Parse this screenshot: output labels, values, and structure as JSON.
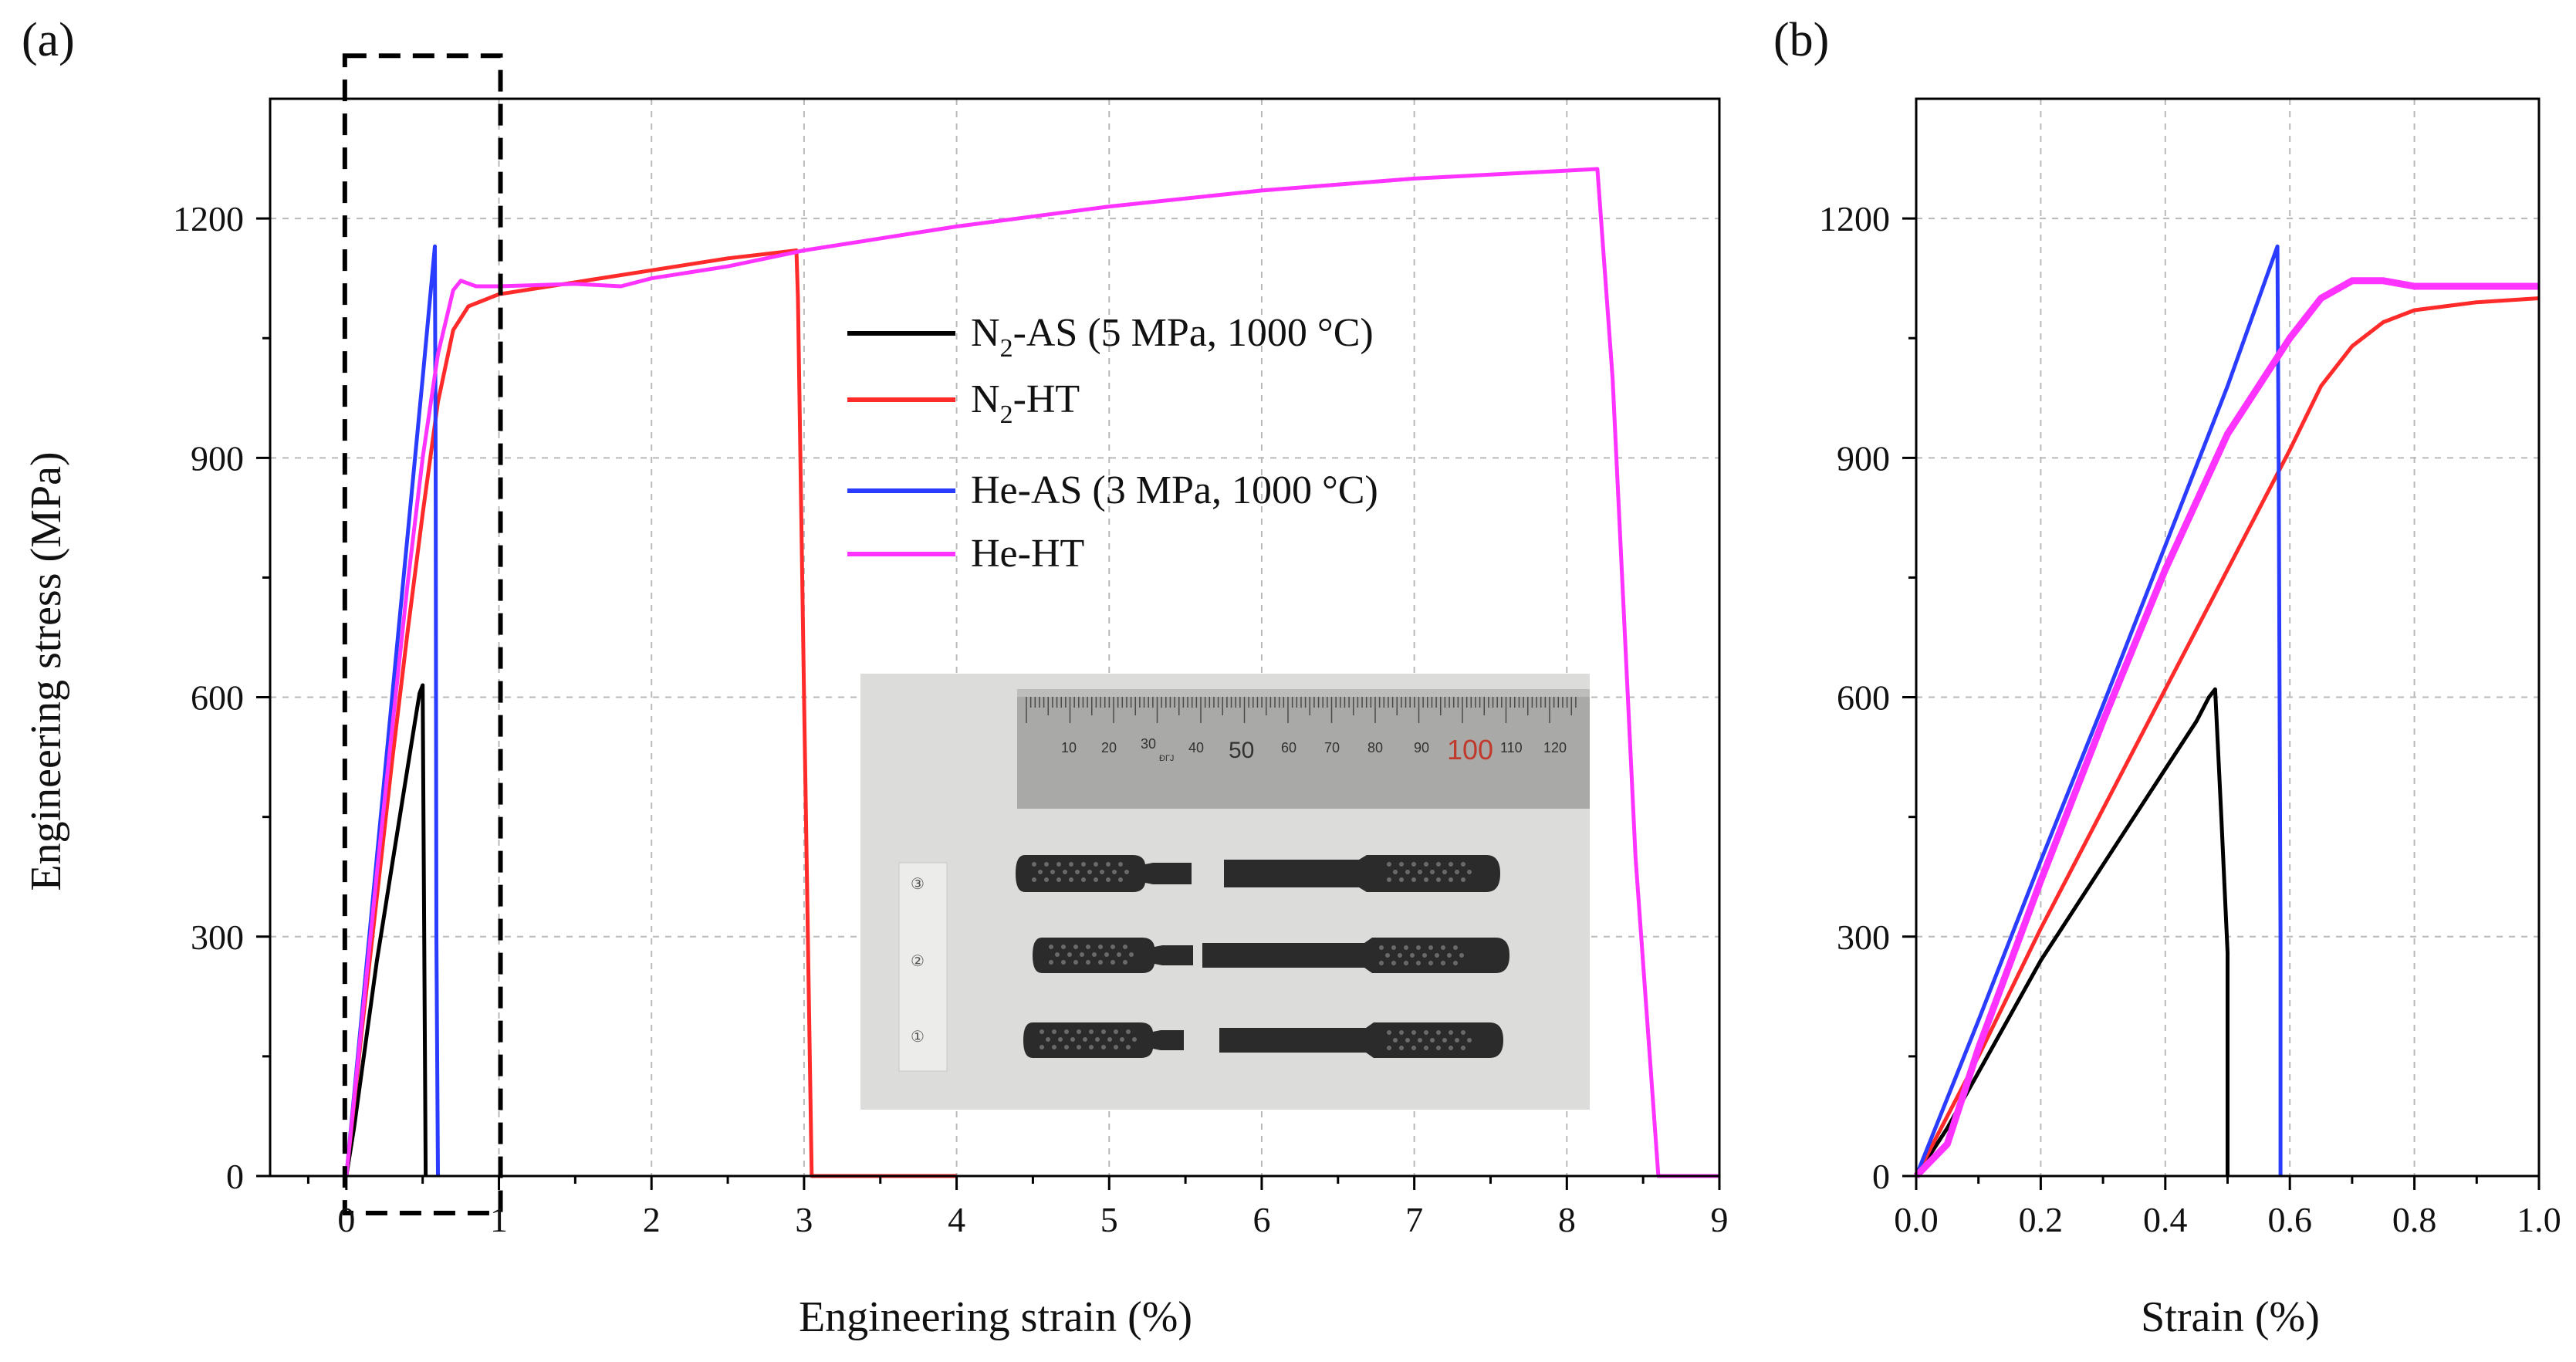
{
  "chart_data": [
    {
      "panel_label": "(a)",
      "type": "line",
      "title": "",
      "xlabel": "Engineering strain (%)",
      "ylabel": "Engineering stress (MPa)",
      "xlim": [
        -0.5,
        9
      ],
      "ylim": [
        0,
        1350
      ],
      "xticks": [
        0,
        1,
        2,
        3,
        4,
        5,
        6,
        7,
        8,
        9
      ],
      "xtick_labels": [
        "0",
        "1",
        "2",
        "3",
        "4",
        "5",
        "6",
        "7",
        "8",
        "9"
      ],
      "yticks": [
        0,
        300,
        600,
        900,
        1200
      ],
      "ytick_labels": [
        "0",
        "300",
        "600",
        "900",
        "1200"
      ],
      "grid": true,
      "zoom_box": {
        "x": [
          0,
          1
        ],
        "y": [
          0,
          1400
        ]
      },
      "legend_position": "center-right",
      "inset_photo": {
        "ruler_numbers": [
          "10",
          "20",
          "30",
          "40",
          "50",
          "60",
          "70",
          "80",
          "90",
          "100",
          "110",
          "120"
        ],
        "ruler_mark": "ĐГЈ",
        "specimen_labels": [
          "③",
          "②",
          "①"
        ]
      },
      "series": [
        {
          "name": "N₂-AS (5 MPa, 1000 °C)",
          "name_main": "N",
          "name_sub": "2",
          "name_rest": "-AS (5 MPa, 1000 °C)",
          "color": "#000000",
          "x": [
            0,
            0.05,
            0.1,
            0.15,
            0.2,
            0.25,
            0.3,
            0.35,
            0.4,
            0.45,
            0.48,
            0.5,
            0.51,
            0.52
          ],
          "y": [
            0,
            60,
            130,
            200,
            270,
            330,
            390,
            450,
            510,
            570,
            605,
            615,
            300,
            0
          ]
        },
        {
          "name": "N₂-HT",
          "name_main": "N",
          "name_sub": "2",
          "name_rest": "-HT",
          "color": "#ff2a2a",
          "x": [
            0,
            0.1,
            0.2,
            0.3,
            0.4,
            0.5,
            0.6,
            0.7,
            0.8,
            1.0,
            1.5,
            2.0,
            2.5,
            2.95,
            2.96,
            3.0,
            3.05,
            4.0
          ],
          "y": [
            0,
            180,
            350,
            520,
            680,
            830,
            970,
            1060,
            1090,
            1105,
            1120,
            1135,
            1150,
            1160,
            1100,
            600,
            0,
            0
          ]
        },
        {
          "name": "He-AS (3 MPa, 1000 °C)",
          "name_main": "He-AS (3 MPa, 1000 °C)",
          "name_sub": "",
          "name_rest": "",
          "color": "#2a3cff",
          "x": [
            0,
            0.1,
            0.2,
            0.3,
            0.4,
            0.5,
            0.58,
            0.585,
            0.59,
            0.6
          ],
          "y": [
            0,
            200,
            400,
            600,
            800,
            1000,
            1165,
            900,
            300,
            0
          ]
        },
        {
          "name": "He-HT",
          "name_main": "He-HT",
          "name_sub": "",
          "name_rest": "",
          "color": "#ff33ff",
          "x": [
            0,
            0.1,
            0.2,
            0.3,
            0.4,
            0.5,
            0.6,
            0.7,
            0.75,
            0.85,
            1.0,
            1.5,
            1.8,
            2.0,
            2.5,
            3.0,
            4.0,
            5.0,
            6.0,
            7.0,
            8.0,
            8.2,
            8.3,
            8.45,
            8.6,
            9.0
          ],
          "y": [
            0,
            190,
            380,
            560,
            740,
            900,
            1030,
            1110,
            1122,
            1115,
            1115,
            1118,
            1115,
            1125,
            1140,
            1160,
            1190,
            1215,
            1235,
            1250,
            1260,
            1262,
            1000,
            400,
            0,
            0
          ]
        }
      ]
    },
    {
      "panel_label": "(b)",
      "type": "line",
      "title": "",
      "xlabel": "Strain (%)",
      "ylabel": "",
      "xlim": [
        0,
        1.0
      ],
      "ylim": [
        0,
        1350
      ],
      "xticks": [
        0,
        0.2,
        0.4,
        0.6,
        0.8,
        1.0
      ],
      "xtick_labels": [
        "0.0",
        "0.2",
        "0.4",
        "0.6",
        "0.8",
        "1.0"
      ],
      "yticks": [
        0,
        300,
        600,
        900,
        1200
      ],
      "ytick_labels": [
        "0",
        "300",
        "600",
        "900",
        "1200"
      ],
      "grid": true,
      "series": [
        {
          "name": "N₂-AS (5 MPa, 1000 °C)",
          "color": "#000000",
          "x": [
            0,
            0.05,
            0.1,
            0.15,
            0.2,
            0.25,
            0.3,
            0.35,
            0.4,
            0.45,
            0.47,
            0.48,
            0.49,
            0.5,
            0.5
          ],
          "y": [
            0,
            60,
            130,
            200,
            270,
            330,
            390,
            450,
            510,
            570,
            600,
            610,
            450,
            280,
            0
          ]
        },
        {
          "name": "N₂-HT",
          "color": "#ff2a2a",
          "x": [
            0,
            0.1,
            0.2,
            0.3,
            0.4,
            0.5,
            0.6,
            0.65,
            0.7,
            0.75,
            0.8,
            0.9,
            1.0
          ],
          "y": [
            0,
            150,
            310,
            460,
            610,
            760,
            910,
            990,
            1040,
            1070,
            1085,
            1095,
            1100
          ]
        },
        {
          "name": "He-AS (3 MPa, 1000 °C)",
          "color": "#2a3cff",
          "x": [
            0,
            0.1,
            0.2,
            0.3,
            0.4,
            0.5,
            0.58,
            0.582,
            0.585,
            0.585
          ],
          "y": [
            0,
            195,
            395,
            590,
            790,
            990,
            1165,
            900,
            300,
            0
          ]
        },
        {
          "name": "He-HT",
          "color": "#ff33ff",
          "x": [
            0,
            0.05,
            0.1,
            0.2,
            0.3,
            0.4,
            0.5,
            0.6,
            0.65,
            0.7,
            0.75,
            0.8,
            0.9,
            1.0
          ],
          "y": [
            0,
            40,
            160,
            370,
            570,
            760,
            930,
            1050,
            1100,
            1122,
            1122,
            1115,
            1115,
            1115
          ]
        }
      ]
    }
  ]
}
